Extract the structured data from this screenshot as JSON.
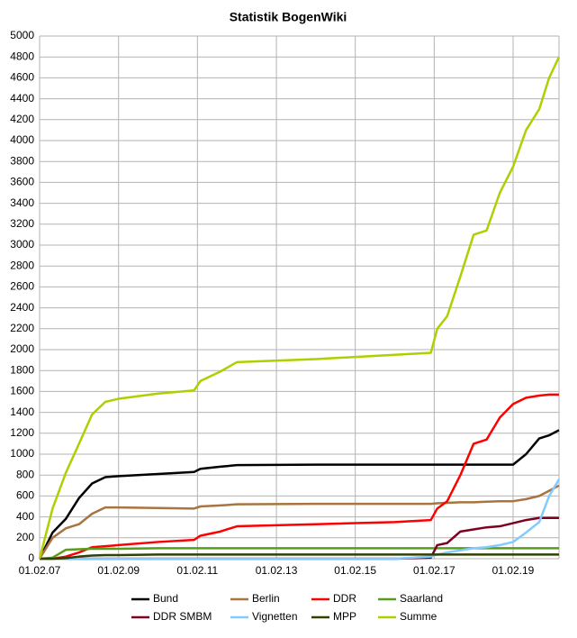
{
  "chart_data": {
    "type": "line",
    "title": "Statistik BogenWiki",
    "x": [
      "2007-02-01",
      "2007-06-01",
      "2007-10-01",
      "2008-02-01",
      "2008-06-01",
      "2008-10-01",
      "2009-02-01",
      "2010-02-01",
      "2011-01-01",
      "2011-03-01",
      "2011-09-01",
      "2012-02-01",
      "2014-02-01",
      "2016-02-01",
      "2017-01-01",
      "2017-03-01",
      "2017-06-01",
      "2017-10-01",
      "2018-02-01",
      "2018-06-01",
      "2018-10-01",
      "2019-02-01",
      "2019-06-01",
      "2019-10-01",
      "2020-01-01",
      "2020-04-01"
    ],
    "series": [
      {
        "name": "Bund",
        "color": "#000000",
        "values": [
          0,
          250,
          380,
          580,
          720,
          780,
          790,
          810,
          830,
          860,
          880,
          895,
          900,
          900,
          900,
          900,
          900,
          900,
          900,
          900,
          900,
          900,
          1000,
          1150,
          1180,
          1230
        ]
      },
      {
        "name": "Berlin",
        "color": "#a8743f",
        "values": [
          0,
          200,
          290,
          330,
          430,
          490,
          490,
          485,
          480,
          500,
          510,
          520,
          525,
          525,
          525,
          530,
          535,
          540,
          540,
          545,
          550,
          550,
          570,
          600,
          650,
          700
        ]
      },
      {
        "name": "DDR",
        "color": "#ff0000",
        "values": [
          0,
          0,
          20,
          60,
          110,
          120,
          130,
          160,
          180,
          220,
          260,
          310,
          330,
          350,
          370,
          480,
          550,
          800,
          1100,
          1140,
          1350,
          1480,
          1540,
          1560,
          1570,
          1570
        ]
      },
      {
        "name": "Saarland",
        "color": "#579d1c",
        "values": [
          0,
          10,
          85,
          90,
          95,
          95,
          95,
          100,
          100,
          100,
          100,
          100,
          100,
          100,
          100,
          100,
          100,
          100,
          100,
          100,
          100,
          100,
          100,
          100,
          100,
          100
        ]
      },
      {
        "name": "DDR SMBM",
        "color": "#7e0021",
        "values": [
          0,
          0,
          0,
          0,
          0,
          0,
          0,
          0,
          0,
          0,
          0,
          0,
          0,
          0,
          10,
          130,
          150,
          260,
          280,
          300,
          310,
          340,
          370,
          390,
          390,
          390
        ]
      },
      {
        "name": "Vignetten",
        "color": "#83caff",
        "values": [
          0,
          0,
          0,
          0,
          0,
          0,
          0,
          0,
          0,
          0,
          0,
          0,
          0,
          0,
          20,
          40,
          60,
          80,
          100,
          110,
          130,
          160,
          250,
          350,
          600,
          760
        ]
      },
      {
        "name": "MPP",
        "color": "#314004",
        "values": [
          0,
          0,
          5,
          20,
          30,
          35,
          35,
          40,
          40,
          40,
          40,
          40,
          40,
          40,
          40,
          40,
          40,
          40,
          40,
          40,
          40,
          40,
          40,
          40,
          40,
          40
        ]
      },
      {
        "name": "Summe",
        "color": "#aecf00",
        "values": [
          0,
          480,
          820,
          1100,
          1380,
          1500,
          1530,
          1580,
          1610,
          1700,
          1790,
          1880,
          1910,
          1950,
          1970,
          2200,
          2320,
          2700,
          3100,
          3140,
          3500,
          3750,
          4100,
          4300,
          4600,
          4800
        ]
      }
    ],
    "xlim": [
      "2007-02-01",
      "2020-04-01"
    ],
    "xticks": [
      {
        "value": "2007-02-01",
        "label": "01.02.07"
      },
      {
        "value": "2009-02-01",
        "label": "01.02.09"
      },
      {
        "value": "2011-02-01",
        "label": "01.02.11"
      },
      {
        "value": "2013-02-01",
        "label": "01.02.13"
      },
      {
        "value": "2015-02-01",
        "label": "01.02.15"
      },
      {
        "value": "2017-02-01",
        "label": "01.02.17"
      },
      {
        "value": "2019-02-01",
        "label": "01.02.19"
      }
    ],
    "ylim": [
      0,
      5000
    ],
    "yticks": [
      0,
      200,
      400,
      600,
      800,
      1000,
      1200,
      1400,
      1600,
      1800,
      2000,
      2200,
      2400,
      2600,
      2800,
      3000,
      3200,
      3400,
      3600,
      3800,
      4000,
      4200,
      4400,
      4600,
      4800,
      5000
    ],
    "grid": true
  }
}
